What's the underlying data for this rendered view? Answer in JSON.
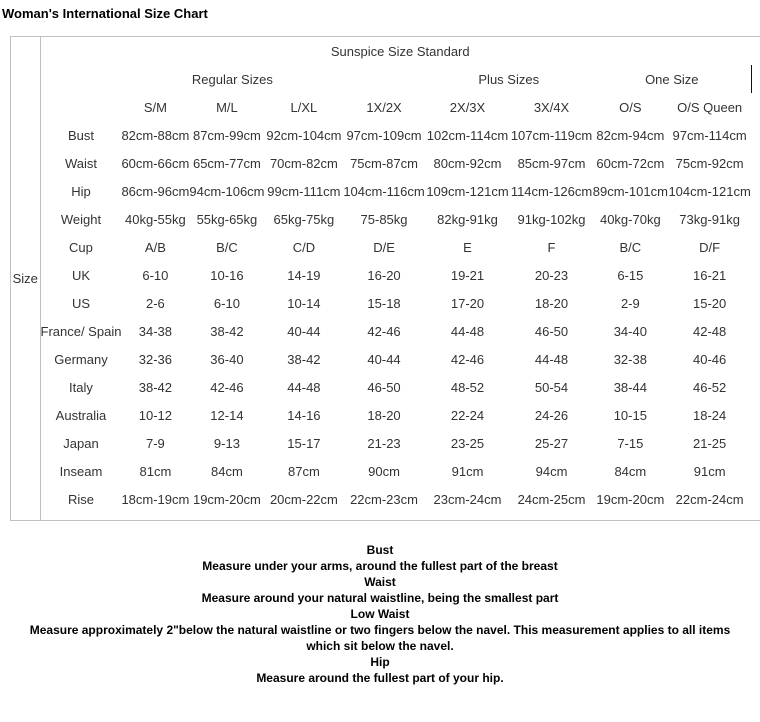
{
  "page": {
    "title": "Woman's International Size Chart"
  },
  "table": {
    "standard_header": "Sunspice Size Standard",
    "size_label": "Size",
    "groups": {
      "regular": "Regular Sizes",
      "plus": "Plus Sizes",
      "one_size": "One Size"
    },
    "columns": [
      "S/M",
      "M/L",
      "L/XL",
      "1X/2X",
      "2X/3X",
      "3X/4X",
      "O/S",
      "O/S Queen"
    ],
    "rows": [
      {
        "label": "Bust",
        "values": [
          "82cm-88cm",
          "87cm-99cm",
          "92cm-104cm",
          "97cm-109cm",
          "102cm-114cm",
          "107cm-119cm",
          "82cm-94cm",
          "97cm-114cm"
        ]
      },
      {
        "label": "Waist",
        "values": [
          "60cm-66cm",
          "65cm-77cm",
          "70cm-82cm",
          "75cm-87cm",
          "80cm-92cm",
          "85cm-97cm",
          "60cm-72cm",
          "75cm-92cm"
        ]
      },
      {
        "label": "Hip",
        "values": [
          "86cm-96cm",
          "94cm-106cm",
          "99cm-111cm",
          "104cm-116cm",
          "109cm-121cm",
          "114cm-126cm",
          "89cm-101cm",
          "104cm-121cm"
        ]
      },
      {
        "label": "Weight",
        "values": [
          "40kg-55kg",
          "55kg-65kg",
          "65kg-75kg",
          "75-85kg",
          "82kg-91kg",
          "91kg-102kg",
          "40kg-70kg",
          "73kg-91kg"
        ]
      },
      {
        "label": "Cup",
        "values": [
          "A/B",
          "B/C",
          "C/D",
          "D/E",
          "E",
          "F",
          "B/C",
          "D/F"
        ]
      },
      {
        "label": "UK",
        "values": [
          "6-10",
          "10-16",
          "14-19",
          "16-20",
          "19-21",
          "20-23",
          "6-15",
          "16-21"
        ]
      },
      {
        "label": "US",
        "values": [
          "2-6",
          "6-10",
          "10-14",
          "15-18",
          "17-20",
          "18-20",
          "2-9",
          "15-20"
        ]
      },
      {
        "label": "France/\nSpain",
        "values": [
          "34-38",
          "38-42",
          "40-44",
          "42-46",
          "44-48",
          "46-50",
          "34-40",
          "42-48"
        ]
      },
      {
        "label": "Germany",
        "values": [
          "32-36",
          "36-40",
          "38-42",
          "40-44",
          "42-46",
          "44-48",
          "32-38",
          "40-46"
        ]
      },
      {
        "label": "Italy",
        "values": [
          "38-42",
          "42-46",
          "44-48",
          "46-50",
          "48-52",
          "50-54",
          "38-44",
          "46-52"
        ]
      },
      {
        "label": "Australia",
        "values": [
          "10-12",
          "12-14",
          "14-16",
          "18-20",
          "22-24",
          "24-26",
          "10-15",
          "18-24"
        ]
      },
      {
        "label": "Japan",
        "values": [
          "7-9",
          "9-13",
          "15-17",
          "21-23",
          "23-25",
          "25-27",
          "7-15",
          "21-25"
        ]
      },
      {
        "label": "Inseam",
        "values": [
          "81cm",
          "84cm",
          "87cm",
          "90cm",
          "91cm",
          "94cm",
          "84cm",
          "91cm"
        ]
      },
      {
        "label": "Rise",
        "values": [
          "18cm-19cm",
          "19cm-20cm",
          "20cm-22cm",
          "22cm-23cm",
          "23cm-24cm",
          "24cm-25cm",
          "19cm-20cm",
          "22cm-24cm"
        ]
      }
    ]
  },
  "notes": [
    {
      "heading": "Bust",
      "description": "Measure under your arms, around the fullest part of the breast"
    },
    {
      "heading": "Waist",
      "description": "Measure around your natural waistline, being the smallest part"
    },
    {
      "heading": "Low Waist",
      "description": "Measure approximately 2\"below the natural waistline or two fingers below the navel. This measurement applies to all items\nwhich sit below the navel."
    },
    {
      "heading": "Hip",
      "description": "Measure around the fullest part of your hip."
    }
  ],
  "colors": {
    "table_border": "#c0c0c0",
    "one_size_divider": "#111111",
    "table_text": "#333333",
    "heading_text": "#000000"
  }
}
